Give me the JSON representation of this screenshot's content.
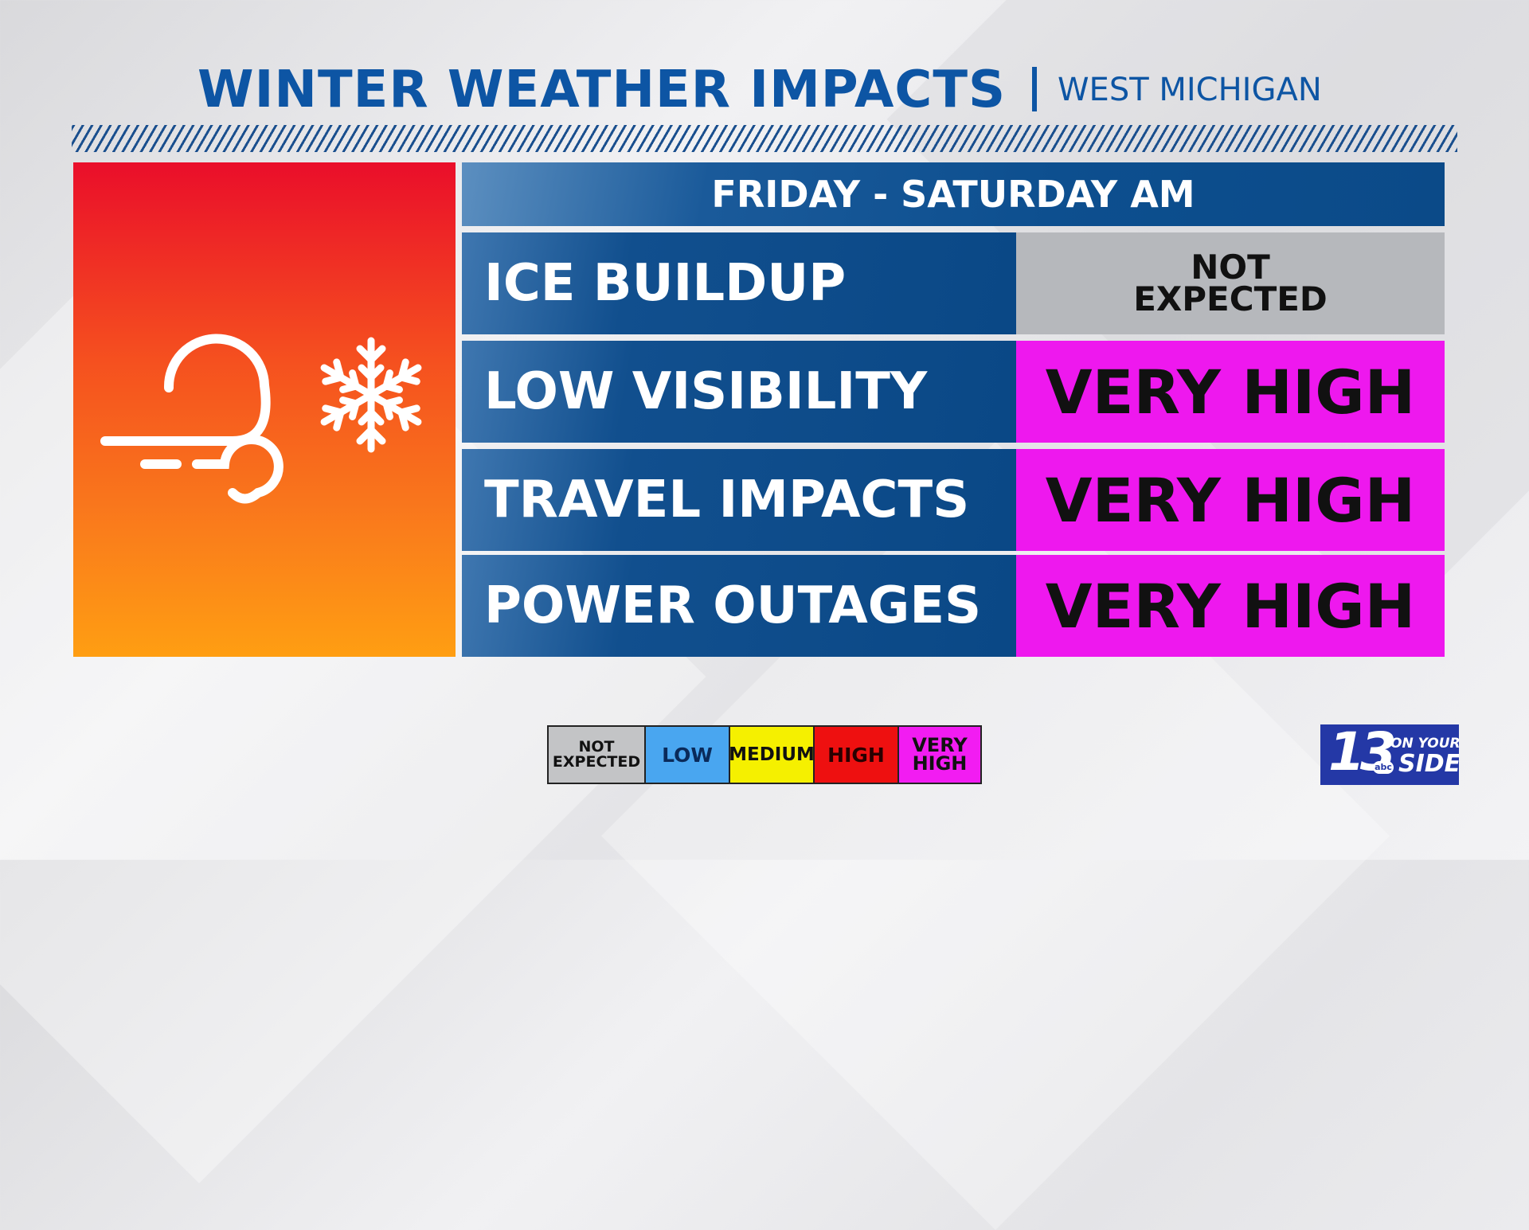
{
  "header": {
    "title": "WINTER WEATHER IMPACTS",
    "separator": "|",
    "region": "WEST MICHIGAN"
  },
  "icon": {
    "name": "wind-snow-icon"
  },
  "table": {
    "period": "FRIDAY - SATURDAY AM",
    "rows": [
      {
        "label": "ICE BUILDUP",
        "value_line1": "NOT",
        "value_line2": "EXPECTED",
        "level": "not-expected",
        "color": "#b6b8bc"
      },
      {
        "label": "LOW VISIBILITY",
        "value": "VERY HIGH",
        "level": "very-high",
        "color": "#ee18ee"
      },
      {
        "label": "TRAVEL IMPACTS",
        "value": "VERY HIGH",
        "level": "very-high",
        "color": "#ee18ee"
      },
      {
        "label": "POWER OUTAGES",
        "value": "VERY HIGH",
        "level": "very-high",
        "color": "#ee18ee"
      }
    ]
  },
  "legend": {
    "items": [
      {
        "line1": "NOT",
        "line2": "EXPECTED",
        "color": "#c3c4c6"
      },
      {
        "line1": "LOW",
        "color": "#49a6f0"
      },
      {
        "line1": "MEDIUM",
        "color": "#f5f000"
      },
      {
        "line1": "HIGH",
        "color": "#ee1010"
      },
      {
        "line1": "VERY",
        "line2": "HIGH",
        "color": "#f21cf2"
      }
    ]
  },
  "logo": {
    "number": "13",
    "network": "abc",
    "line1": "ON YOUR",
    "line2": "SIDE",
    "color": "#2438a6"
  },
  "colors": {
    "title_blue": "#0d55a4",
    "table_blue": "#0b4a88"
  }
}
